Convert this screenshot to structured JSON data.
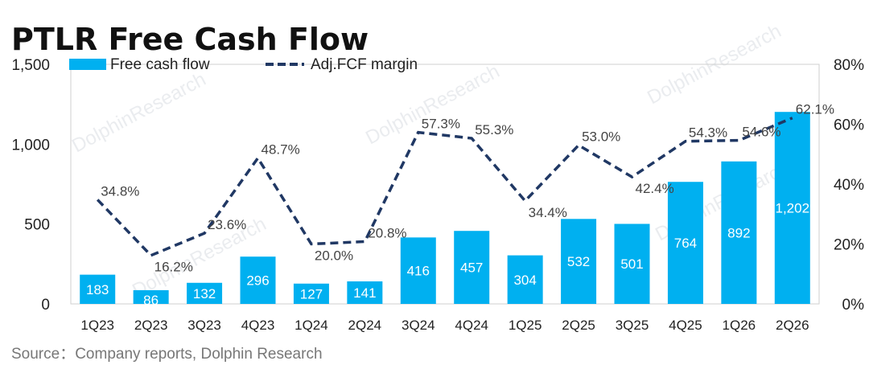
{
  "title": "PTLR Free Cash Flow",
  "source": "Source：Company reports, Dolphin Research",
  "watermark": "DolphinResearch",
  "colors": {
    "bar": "#00b0f0",
    "line": "#203864",
    "frame": "#cfcfcf"
  },
  "chart_data": {
    "type": "bar",
    "title": "PTLR Free Cash Flow",
    "categories": [
      "1Q23",
      "2Q23",
      "3Q23",
      "4Q23",
      "1Q24",
      "2Q24",
      "3Q24",
      "4Q24",
      "1Q25",
      "2Q25",
      "3Q25",
      "4Q25",
      "1Q26",
      "2Q26"
    ],
    "series": [
      {
        "name": "Free cash flow",
        "type": "bar",
        "axis": "left",
        "values": [
          183,
          86,
          132,
          296,
          127,
          141,
          416,
          457,
          304,
          532,
          501,
          764,
          892,
          1202
        ],
        "labels": [
          "183",
          "86",
          "132",
          "296",
          "127",
          "141",
          "416",
          "457",
          "304",
          "532",
          "501",
          "764",
          "892",
          "1,202"
        ]
      },
      {
        "name": "Adj.FCF margin",
        "type": "line",
        "style": "dashed",
        "axis": "right",
        "values": [
          34.8,
          16.2,
          23.6,
          48.7,
          20.0,
          20.8,
          57.3,
          55.3,
          34.4,
          53.0,
          42.4,
          54.3,
          54.6,
          62.1
        ],
        "labels": [
          "34.8%",
          "16.2%",
          "23.6%",
          "48.7%",
          "20.0%",
          "20.8%",
          "57.3%",
          "55.3%",
          "34.4%",
          "53.0%",
          "42.4%",
          "54.3%",
          "54.6%",
          "62.1%"
        ]
      }
    ],
    "y_left": {
      "ylim": [
        0,
        1500
      ],
      "ticks": [
        0,
        500,
        1000,
        1500
      ],
      "tick_labels": [
        "0",
        "500",
        "1,000",
        "1,500"
      ]
    },
    "y_right": {
      "ylim": [
        0,
        80
      ],
      "ticks": [
        0,
        20,
        40,
        60,
        80
      ],
      "tick_labels": [
        "0%",
        "20%",
        "40%",
        "60%",
        "80%"
      ]
    },
    "legend": "top-left",
    "grid": false
  }
}
